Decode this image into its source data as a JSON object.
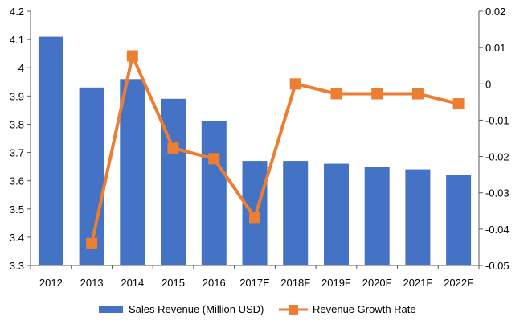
{
  "colors": {
    "bar": "#4472C4",
    "line": "#ED7D31",
    "axis": "#595959",
    "text": "#000000"
  },
  "chart_data": {
    "type": "bar",
    "title": "",
    "categories": [
      "2012",
      "2013",
      "2014",
      "2015",
      "2016",
      "2017E",
      "2018F",
      "2019F",
      "2020F",
      "2021F",
      "2022F"
    ],
    "series": [
      {
        "name": "Sales Revenue (Million USD)",
        "type": "bar",
        "axis": "left",
        "values": [
          4.11,
          3.93,
          3.96,
          3.89,
          3.81,
          3.67,
          3.67,
          3.66,
          3.65,
          3.64,
          3.62
        ]
      },
      {
        "name": "Revenue Growth Rate",
        "type": "line",
        "axis": "right",
        "values": [
          null,
          -0.044,
          0.0077,
          -0.0177,
          -0.0206,
          -0.0368,
          0.0,
          -0.0027,
          -0.0027,
          -0.0027,
          -0.0055
        ]
      }
    ],
    "y_left": {
      "min": 3.3,
      "max": 4.2,
      "ticks": [
        "3.3",
        "3.4",
        "3.5",
        "3.6",
        "3.7",
        "3.8",
        "3.9",
        "4",
        "4.1",
        "4.2"
      ]
    },
    "y_right": {
      "min": -0.05,
      "max": 0.02,
      "ticks": [
        "-0.05",
        "-0.04",
        "-0.03",
        "-0.02",
        "-0.01",
        "0",
        "0.01",
        "0.02"
      ]
    },
    "xlabel": "",
    "ylabel": "",
    "grid": false,
    "legend_position": "bottom"
  }
}
